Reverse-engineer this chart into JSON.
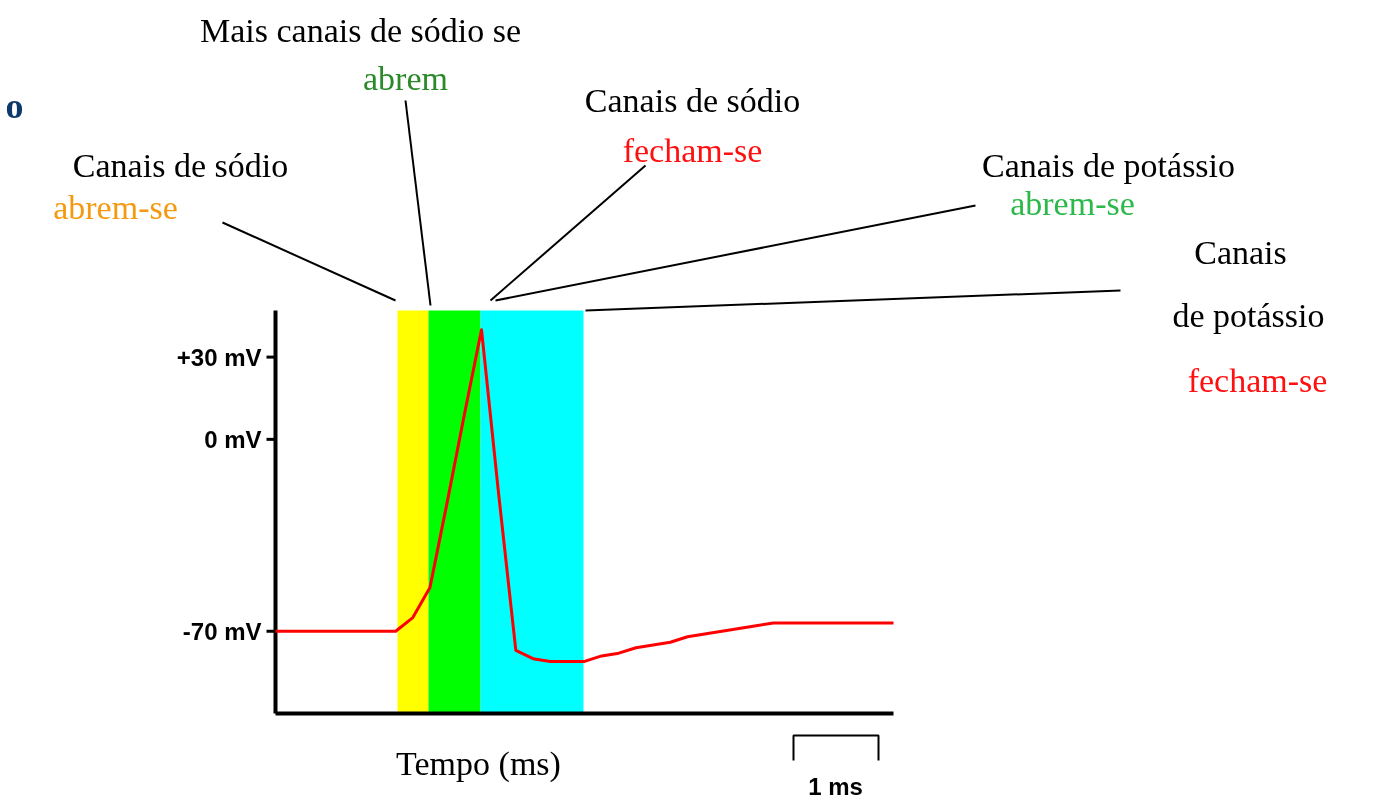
{
  "chart_data": {
    "type": "line",
    "xlabel": "Tempo (ms)",
    "categories": [
      null,
      null,
      null,
      null,
      null,
      null,
      null,
      null,
      null,
      null,
      null,
      null,
      null,
      null,
      null,
      null,
      null,
      null,
      null,
      null,
      null,
      null,
      null,
      null,
      null,
      null,
      null,
      null,
      null,
      null,
      null,
      null,
      null,
      null,
      null,
      null,
      null
    ],
    "series": [
      {
        "color": "#ff0000",
        "values": [
          -70,
          -70,
          -70,
          -70,
          -70,
          -70,
          -70,
          -70,
          -65,
          -54,
          -23,
          9,
          40,
          -20,
          -77,
          -80,
          -81,
          -81,
          -81,
          -79,
          -78,
          -76,
          -75,
          -74,
          -72,
          -71,
          -70,
          -69,
          -68,
          -67,
          -67,
          -67,
          -67,
          -67,
          -67,
          -67,
          -67
        ]
      }
    ],
    "ylim": [
      -100,
      47
    ],
    "yticks": [
      {
        "value": 30,
        "label": "+30 mV"
      },
      {
        "value": 0,
        "label": "0 mV"
      },
      {
        "value": -70,
        "label": "-70 mV"
      }
    ],
    "tick_labels": "y",
    "annotations": [
      "o",
      "Mais canais de sódio se",
      "abrem",
      "Canais de sódio",
      "fecham-se",
      "Canais de sódio",
      "abrem-se",
      "Canais de potássio",
      "abrem-se",
      "Canais",
      "de potássio",
      "fecham-se",
      "1 ms"
    ]
  }
}
